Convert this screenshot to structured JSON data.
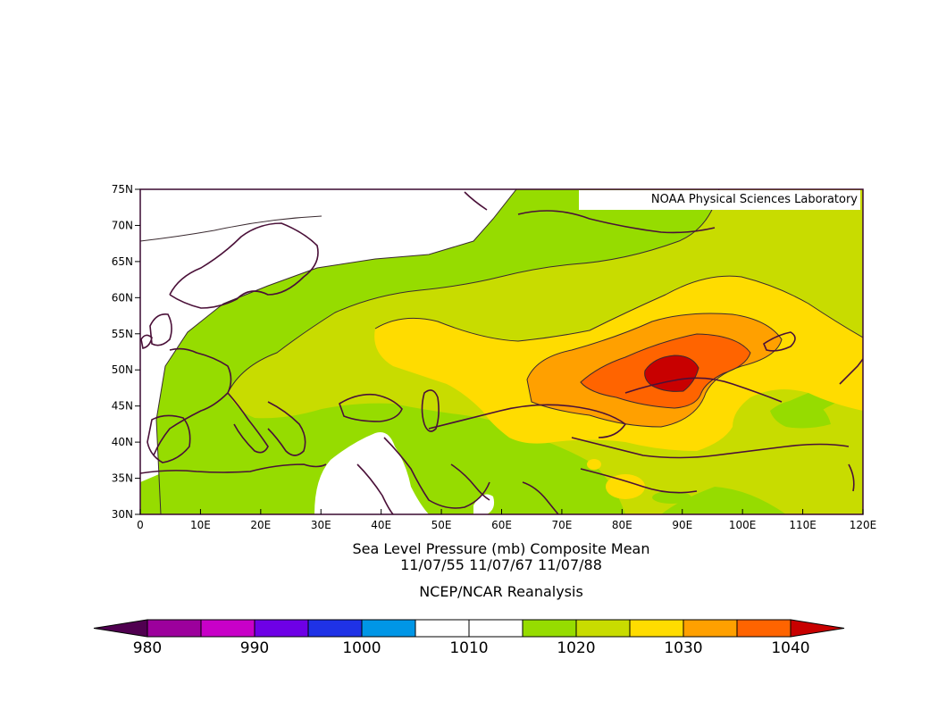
{
  "title": {
    "line1": "Sea Level Pressure (mb) Composite Mean",
    "line2": "11/07/55 11/07/67 11/07/88",
    "source": "NCEP/NCAR Reanalysis"
  },
  "credit": "NOAA Physical Sciences Laboratory",
  "colors": {
    "coast": "#4a1038",
    "contour": "#3a2a30",
    "frame": "#3a0a30"
  },
  "map": {
    "lon_range": [
      0,
      120
    ],
    "lat_range": [
      30,
      75
    ],
    "lon_ticks": [
      {
        "value": 0,
        "label": "0"
      },
      {
        "value": 10,
        "label": "10E"
      },
      {
        "value": 20,
        "label": "20E"
      },
      {
        "value": 30,
        "label": "30E"
      },
      {
        "value": 40,
        "label": "40E"
      },
      {
        "value": 50,
        "label": "50E"
      },
      {
        "value": 60,
        "label": "60E"
      },
      {
        "value": 70,
        "label": "70E"
      },
      {
        "value": 80,
        "label": "80E"
      },
      {
        "value": 90,
        "label": "90E"
      },
      {
        "value": 100,
        "label": "100E"
      },
      {
        "value": 110,
        "label": "110E"
      },
      {
        "value": 120,
        "label": "120E"
      }
    ],
    "lat_ticks": [
      {
        "value": 30,
        "label": "30N"
      },
      {
        "value": 35,
        "label": "35N"
      },
      {
        "value": 40,
        "label": "40N"
      },
      {
        "value": 45,
        "label": "45N"
      },
      {
        "value": 50,
        "label": "50N"
      },
      {
        "value": 55,
        "label": "55N"
      },
      {
        "value": 60,
        "label": "60N"
      },
      {
        "value": 65,
        "label": "65N"
      },
      {
        "value": 70,
        "label": "70N"
      },
      {
        "value": 75,
        "label": "75N"
      }
    ]
  },
  "colorbar": {
    "bins": [
      {
        "color": "#9c009c"
      },
      {
        "color": "#c800c8"
      },
      {
        "color": "#6e00e6"
      },
      {
        "color": "#1f32e6"
      },
      {
        "color": "#0096e6"
      },
      {
        "color": "#ffffff"
      },
      {
        "color": "#ffffff"
      },
      {
        "color": "#96dc00"
      },
      {
        "color": "#c8dc00"
      },
      {
        "color": "#ffdc00"
      },
      {
        "color": "#ffa000"
      },
      {
        "color": "#ff6400"
      }
    ],
    "under_color": "#500050",
    "over_color": "#c80000",
    "labels": [
      {
        "value": 980,
        "text": "980"
      },
      {
        "value": 990,
        "text": "990"
      },
      {
        "value": 1000,
        "text": "1000"
      },
      {
        "value": 1010,
        "text": "1010"
      },
      {
        "value": 1020,
        "text": "1020"
      },
      {
        "value": 1030,
        "text": "1030"
      },
      {
        "value": 1040,
        "text": "1040"
      }
    ],
    "min": 980,
    "step": 5
  },
  "pressure_fields": [
    {
      "name": "1015-1020",
      "color": "#96dc00"
    },
    {
      "name": "1020-1025",
      "color": "#c8dc00"
    },
    {
      "name": "1025-1030",
      "color": "#ffdc00"
    },
    {
      "name": "1030-1035",
      "color": "#ffa000"
    },
    {
      "name": "1035-1040",
      "color": "#ff6400"
    },
    {
      "name": "above-1040",
      "color": "#c80000"
    }
  ]
}
